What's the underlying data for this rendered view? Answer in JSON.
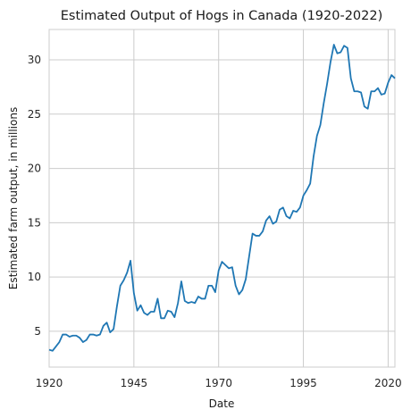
{
  "chart_data": {
    "type": "line",
    "title": "Estimated Output of Hogs in Canada (1920-2022)",
    "xlabel": "Date",
    "ylabel": "Estimated farm output, in millions",
    "xlim": [
      1920,
      2022
    ],
    "ylim": [
      1.7,
      32.8
    ],
    "xticks": [
      1920,
      1945,
      1970,
      1995,
      2020
    ],
    "yticks": [
      5,
      10,
      15,
      20,
      25,
      30
    ],
    "grid": true,
    "line_color": "#1f77b4",
    "series": [
      {
        "x": [
          1920,
          1921,
          1922,
          1923,
          1924,
          1925,
          1926,
          1927,
          1928,
          1929,
          1930,
          1931,
          1932,
          1933,
          1934,
          1935,
          1936,
          1937,
          1938,
          1939,
          1940,
          1941,
          1942,
          1943,
          1944,
          1945,
          1946,
          1947,
          1948,
          1949,
          1950,
          1951,
          1952,
          1953,
          1954,
          1955,
          1956,
          1957,
          1958,
          1959,
          1960,
          1961,
          1962,
          1963,
          1964,
          1965,
          1966,
          1967,
          1968,
          1969,
          1970,
          1971,
          1972,
          1973,
          1974,
          1975,
          1976,
          1977,
          1978,
          1979,
          1980,
          1981,
          1982,
          1983,
          1984,
          1985,
          1986,
          1987,
          1988,
          1989,
          1990,
          1991,
          1992,
          1993,
          1994,
          1995,
          1996,
          1997,
          1998,
          1999,
          2000,
          2001,
          2002,
          2003,
          2004,
          2005,
          2006,
          2007,
          2008,
          2009,
          2010,
          2011,
          2012,
          2013,
          2014,
          2015,
          2016,
          2017,
          2018,
          2019,
          2020,
          2021,
          2022
        ],
        "values": [
          3.3,
          3.2,
          3.6,
          4.0,
          4.7,
          4.7,
          4.5,
          4.6,
          4.6,
          4.4,
          4.0,
          4.2,
          4.7,
          4.7,
          4.6,
          4.7,
          5.5,
          5.8,
          4.9,
          5.2,
          7.3,
          9.2,
          9.7,
          10.4,
          11.5,
          8.5,
          6.9,
          7.4,
          6.7,
          6.5,
          6.8,
          6.8,
          8.0,
          6.2,
          6.2,
          6.9,
          6.8,
          6.3,
          7.6,
          9.6,
          7.8,
          7.6,
          7.7,
          7.6,
          8.2,
          8.0,
          8.0,
          9.2,
          9.2,
          8.6,
          10.6,
          11.4,
          11.1,
          10.8,
          10.9,
          9.2,
          8.4,
          8.8,
          9.8,
          11.9,
          14.0,
          13.8,
          13.8,
          14.2,
          15.2,
          15.6,
          14.9,
          15.1,
          16.2,
          16.4,
          15.6,
          15.4,
          16.1,
          16.0,
          16.4,
          17.5,
          18.0,
          18.6,
          21.1,
          23.0,
          24.0,
          26.0,
          27.8,
          29.8,
          31.4,
          30.6,
          30.7,
          31.3,
          31.1,
          28.3,
          27.1,
          27.1,
          27.0,
          25.7,
          25.5,
          27.1,
          27.1,
          27.4,
          26.8,
          26.9,
          27.9,
          28.6,
          28.3
        ]
      }
    ]
  }
}
